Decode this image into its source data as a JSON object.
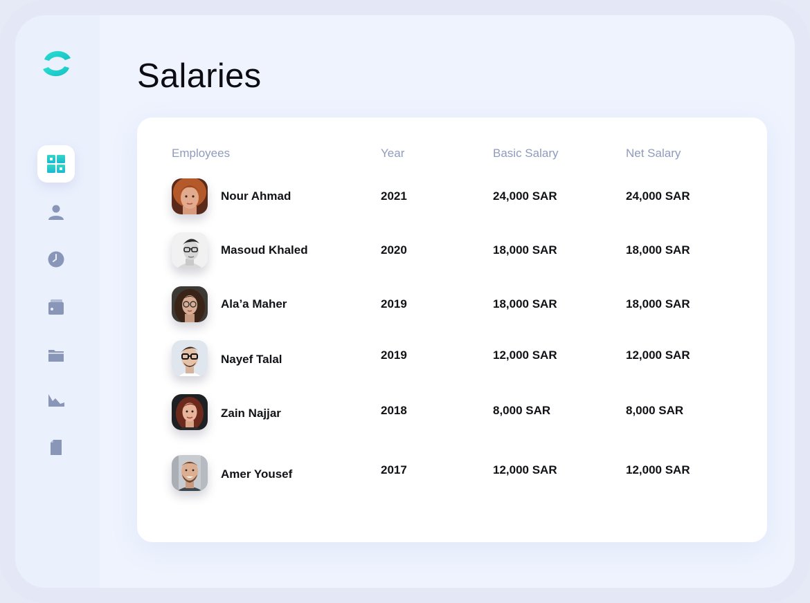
{
  "page": {
    "title": "Salaries"
  },
  "sidebar": {
    "logo": "brand-logo",
    "items": [
      {
        "icon": "dashboard-icon",
        "active": true
      },
      {
        "icon": "user-icon",
        "active": false
      },
      {
        "icon": "clock-icon",
        "active": false
      },
      {
        "icon": "wallet-icon",
        "active": false
      },
      {
        "icon": "folder-icon",
        "active": false
      },
      {
        "icon": "chart-icon",
        "active": false
      },
      {
        "icon": "document-icon",
        "active": false
      }
    ]
  },
  "table": {
    "columns": [
      "Employees",
      "Year",
      "Basic Salary",
      "Net Salary"
    ],
    "rows": [
      {
        "name": "Nour Ahmad",
        "year": "2021",
        "basic": "24,000 SAR",
        "net": "24,000 SAR"
      },
      {
        "name": "Masoud Khaled",
        "year": "2020",
        "basic": "18,000 SAR",
        "net": "18,000 SAR"
      },
      {
        "name": "Ala’a Maher",
        "year": "2019",
        "basic": "18,000 SAR",
        "net": "18,000 SAR"
      },
      {
        "name": "Nayef Talal",
        "year": "2019",
        "basic": "12,000 SAR",
        "net": "12,000 SAR"
      },
      {
        "name": "Zain Najjar",
        "year": "2018",
        "basic": "8,000 SAR",
        "net": "8,000 SAR"
      },
      {
        "name": "Amer Yousef",
        "year": "2017",
        "basic": "12,000 SAR",
        "net": "12,000 SAR"
      }
    ]
  },
  "colors": {
    "accent": "#1fcfc8",
    "icon_muted": "#8996b8",
    "heading": "#0c0c12",
    "column_header": "#8f9bbd"
  }
}
